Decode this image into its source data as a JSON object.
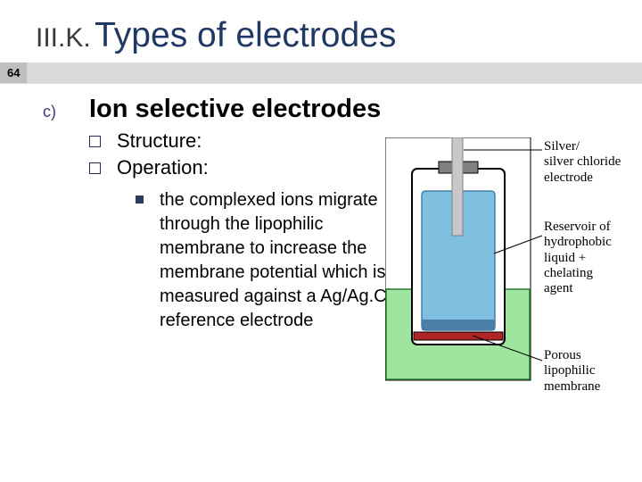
{
  "title": {
    "prefix": "III.K.",
    "main": "Types of electrodes"
  },
  "slide_number": "64",
  "subheading": {
    "marker": "c)",
    "text": "Ion selective electrodes"
  },
  "bullets": [
    {
      "text": "Structure:"
    },
    {
      "text": "Operation:"
    }
  ],
  "detail": "the complexed ions migrate through the lipophilic membrane to increase the membrane potential which is measured against a Ag/Ag.Cl reference electrode",
  "diagram": {
    "labels": {
      "top": "Silver/\nsilver chloride\nelectrode",
      "mid": "Reservoir of\nhydrophobic\nliquid +\nchelating\nagent",
      "bottom": "Porous\nlipophilic\nmembrane"
    },
    "colors": {
      "outer_border": "#000000",
      "outline": "#000000",
      "inner_fill": "#7fbfe0",
      "inner_dark": "#4a7fa8",
      "solution": "#9fe59f",
      "solution_border": "#2e7d32",
      "membrane": "#b02525",
      "cap": "#808080",
      "rod": "#c8c8c8",
      "label_line": "#000000"
    }
  }
}
